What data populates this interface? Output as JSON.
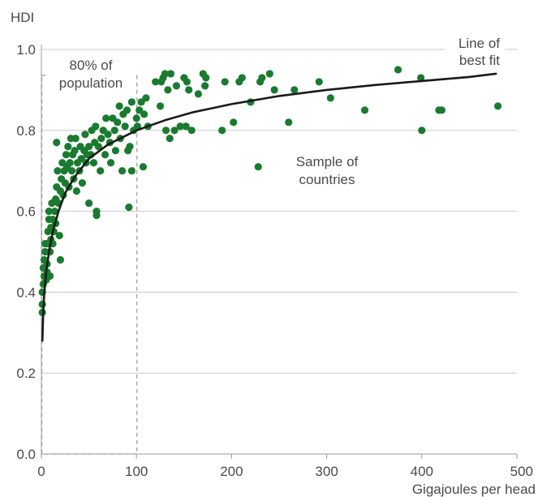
{
  "chart_data": {
    "type": "scatter",
    "ylabel": "HDI",
    "xlabel": "Gigajoules per head",
    "xlim": [
      0,
      500
    ],
    "ylim": [
      0,
      1.0
    ],
    "x_ticks": [
      "0",
      "100",
      "200",
      "300",
      "400",
      "500"
    ],
    "y_ticks": [
      "0.0",
      "0.2",
      "0.4",
      "0.6",
      "0.8",
      "1.0"
    ],
    "grid": "horizontal",
    "colors": {
      "points": "#1a7a30",
      "fit_line": "#1a1a1a",
      "grid": "#c8c8c8",
      "box": "#a0a0a0"
    },
    "annotations": {
      "population_box": {
        "line1": "80% of",
        "line2": "population",
        "x_max": 100
      },
      "fit_label": {
        "line1": "Line of",
        "line2": "best fit"
      },
      "sample_label": {
        "line1": "Sample of",
        "line2": "countries"
      }
    },
    "best_fit": [
      [
        1,
        0.28
      ],
      [
        2,
        0.35
      ],
      [
        3,
        0.395
      ],
      [
        5,
        0.45
      ],
      [
        8,
        0.5
      ],
      [
        12,
        0.55
      ],
      [
        18,
        0.6
      ],
      [
        25,
        0.645
      ],
      [
        35,
        0.685
      ],
      [
        50,
        0.73
      ],
      [
        70,
        0.765
      ],
      [
        100,
        0.8
      ],
      [
        130,
        0.825
      ],
      [
        160,
        0.845
      ],
      [
        200,
        0.865
      ],
      [
        250,
        0.885
      ],
      [
        300,
        0.9
      ],
      [
        350,
        0.912
      ],
      [
        400,
        0.922
      ],
      [
        450,
        0.932
      ],
      [
        478,
        0.94
      ]
    ],
    "series": [
      {
        "points": [
          [
            1,
            0.35
          ],
          [
            1,
            0.37
          ],
          [
            1,
            0.4
          ],
          [
            2,
            0.42
          ],
          [
            3,
            0.44
          ],
          [
            2,
            0.46
          ],
          [
            3,
            0.48
          ],
          [
            4,
            0.5
          ],
          [
            4,
            0.52
          ],
          [
            5,
            0.43
          ],
          [
            6,
            0.45
          ],
          [
            6,
            0.47
          ],
          [
            7,
            0.52
          ],
          [
            7,
            0.55
          ],
          [
            8,
            0.58
          ],
          [
            8,
            0.6
          ],
          [
            9,
            0.44
          ],
          [
            9,
            0.5
          ],
          [
            10,
            0.53
          ],
          [
            10,
            0.56
          ],
          [
            11,
            0.62
          ],
          [
            12,
            0.58
          ],
          [
            12,
            0.52
          ],
          [
            13,
            0.55
          ],
          [
            14,
            0.6
          ],
          [
            15,
            0.57
          ],
          [
            15,
            0.63
          ],
          [
            16,
            0.77
          ],
          [
            16,
            0.66
          ],
          [
            17,
            0.7
          ],
          [
            18,
            0.62
          ],
          [
            19,
            0.54
          ],
          [
            20,
            0.48
          ],
          [
            20,
            0.65
          ],
          [
            21,
            0.68
          ],
          [
            22,
            0.72
          ],
          [
            23,
            0.64
          ],
          [
            24,
            0.7
          ],
          [
            25,
            0.67
          ],
          [
            26,
            0.74
          ],
          [
            27,
            0.71
          ],
          [
            28,
            0.76
          ],
          [
            29,
            0.66
          ],
          [
            30,
            0.72
          ],
          [
            31,
            0.78
          ],
          [
            32,
            0.7
          ],
          [
            33,
            0.74
          ],
          [
            34,
            0.68
          ],
          [
            35,
            0.75
          ],
          [
            36,
            0.78
          ],
          [
            37,
            0.65
          ],
          [
            38,
            0.72
          ],
          [
            40,
            0.7
          ],
          [
            41,
            0.76
          ],
          [
            42,
            0.73
          ],
          [
            43,
            0.67
          ],
          [
            45,
            0.75
          ],
          [
            46,
            0.79
          ],
          [
            47,
            0.72
          ],
          [
            48,
            0.74
          ],
          [
            50,
            0.76
          ],
          [
            50,
            0.62
          ],
          [
            52,
            0.74
          ],
          [
            53,
            0.8
          ],
          [
            55,
            0.72
          ],
          [
            56,
            0.77
          ],
          [
            57,
            0.81
          ],
          [
            58,
            0.59
          ],
          [
            58,
            0.6
          ],
          [
            60,
            0.76
          ],
          [
            62,
            0.7
          ],
          [
            63,
            0.78
          ],
          [
            65,
            0.8
          ],
          [
            67,
            0.74
          ],
          [
            68,
            0.83
          ],
          [
            70,
            0.79
          ],
          [
            72,
            0.77
          ],
          [
            73,
            0.72
          ],
          [
            75,
            0.83
          ],
          [
            77,
            0.8
          ],
          [
            78,
            0.75
          ],
          [
            80,
            0.82
          ],
          [
            82,
            0.86
          ],
          [
            83,
            0.78
          ],
          [
            85,
            0.7
          ],
          [
            86,
            0.84
          ],
          [
            88,
            0.81
          ],
          [
            90,
            0.85
          ],
          [
            91,
            0.75
          ],
          [
            92,
            0.61
          ],
          [
            93,
            0.76
          ],
          [
            95,
            0.7
          ],
          [
            95,
            0.87
          ],
          [
            97,
            0.8
          ],
          [
            100,
            0.83
          ],
          [
            101,
            0.81
          ],
          [
            103,
            0.85
          ],
          [
            105,
            0.87
          ],
          [
            107,
            0.71
          ],
          [
            108,
            0.84
          ],
          [
            110,
            0.88
          ],
          [
            112,
            0.81
          ],
          [
            120,
            0.92
          ],
          [
            125,
            0.86
          ],
          [
            126,
            0.92
          ],
          [
            128,
            0.93
          ],
          [
            130,
            0.94
          ],
          [
            131,
            0.8
          ],
          [
            133,
            0.9
          ],
          [
            135,
            0.78
          ],
          [
            136,
            0.94
          ],
          [
            140,
            0.8
          ],
          [
            142,
            0.91
          ],
          [
            146,
            0.81
          ],
          [
            150,
            0.93
          ],
          [
            152,
            0.81
          ],
          [
            153,
            0.92
          ],
          [
            155,
            0.9
          ],
          [
            158,
            0.8
          ],
          [
            165,
            0.89
          ],
          [
            170,
            0.94
          ],
          [
            172,
            0.91
          ],
          [
            173,
            0.93
          ],
          [
            190,
            0.8
          ],
          [
            193,
            0.92
          ],
          [
            202,
            0.82
          ],
          [
            208,
            0.92
          ],
          [
            211,
            0.93
          ],
          [
            220,
            0.87
          ],
          [
            228,
            0.71
          ],
          [
            230,
            0.92
          ],
          [
            232,
            0.93
          ],
          [
            240,
            0.94
          ],
          [
            245,
            0.9
          ],
          [
            260,
            0.82
          ],
          [
            266,
            0.9
          ],
          [
            292,
            0.92
          ],
          [
            304,
            0.88
          ],
          [
            340,
            0.85
          ],
          [
            375,
            0.95
          ],
          [
            399,
            0.93
          ],
          [
            400,
            0.8
          ],
          [
            418,
            0.85
          ],
          [
            421,
            0.85
          ],
          [
            480,
            0.86
          ]
        ]
      }
    ]
  }
}
